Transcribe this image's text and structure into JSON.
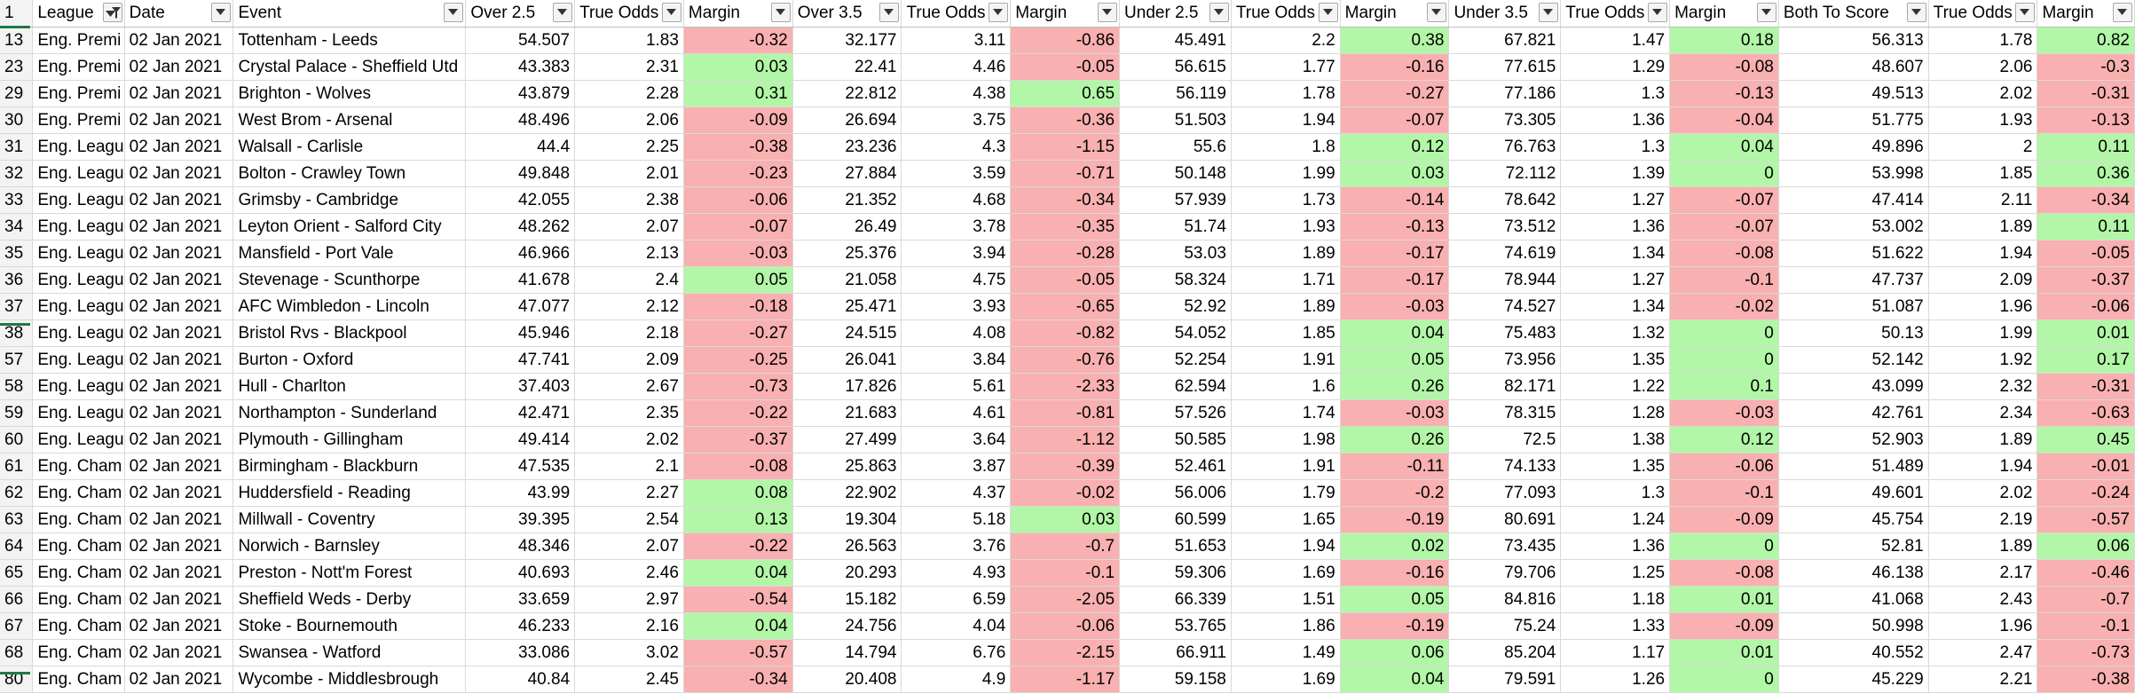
{
  "headers": [
    {
      "row": "1",
      "label": "League",
      "filtered": true
    },
    {
      "label": "Date"
    },
    {
      "label": "Event"
    },
    {
      "label": "Over 2.5"
    },
    {
      "label": "True Odds"
    },
    {
      "label": "Margin"
    },
    {
      "label": "Over 3.5"
    },
    {
      "label": "True Odds"
    },
    {
      "label": "Margin"
    },
    {
      "label": "Under 2.5"
    },
    {
      "label": "True Odds"
    },
    {
      "label": "Margin"
    },
    {
      "label": "Under 3.5"
    },
    {
      "label": "True Odds"
    },
    {
      "label": "Margin"
    },
    {
      "label": "Both To Score"
    },
    {
      "label": "True Odds"
    },
    {
      "label": "Margin"
    }
  ],
  "rows": [
    [
      "13",
      "Eng. Premi",
      "02 Jan 2021",
      "Tottenham - Leeds",
      "54.507",
      "1.83",
      "-0.32",
      "32.177",
      "3.11",
      "-0.86",
      "45.491",
      "2.2",
      "0.38",
      "67.821",
      "1.47",
      "0.18",
      "56.313",
      "1.78",
      "0.82"
    ],
    [
      "23",
      "Eng. Premi",
      "02 Jan 2021",
      "Crystal Palace - Sheffield Utd",
      "43.383",
      "2.31",
      "0.03",
      "22.41",
      "4.46",
      "-0.05",
      "56.615",
      "1.77",
      "-0.16",
      "77.615",
      "1.29",
      "-0.08",
      "48.607",
      "2.06",
      "-0.3"
    ],
    [
      "29",
      "Eng. Premi",
      "02 Jan 2021",
      "Brighton - Wolves",
      "43.879",
      "2.28",
      "0.31",
      "22.812",
      "4.38",
      "0.65",
      "56.119",
      "1.78",
      "-0.27",
      "77.186",
      "1.3",
      "-0.13",
      "49.513",
      "2.02",
      "-0.31"
    ],
    [
      "30",
      "Eng. Premi",
      "02 Jan 2021",
      "West Brom - Arsenal",
      "48.496",
      "2.06",
      "-0.09",
      "26.694",
      "3.75",
      "-0.36",
      "51.503",
      "1.94",
      "-0.07",
      "73.305",
      "1.36",
      "-0.04",
      "51.775",
      "1.93",
      "-0.13"
    ],
    [
      "31",
      "Eng. Leagu",
      "02 Jan 2021",
      "Walsall - Carlisle",
      "44.4",
      "2.25",
      "-0.38",
      "23.236",
      "4.3",
      "-1.15",
      "55.6",
      "1.8",
      "0.12",
      "76.763",
      "1.3",
      "0.04",
      "49.896",
      "2",
      "0.11"
    ],
    [
      "32",
      "Eng. Leagu",
      "02 Jan 2021",
      "Bolton - Crawley Town",
      "49.848",
      "2.01",
      "-0.23",
      "27.884",
      "3.59",
      "-0.71",
      "50.148",
      "1.99",
      "0.03",
      "72.112",
      "1.39",
      "0",
      "53.998",
      "1.85",
      "0.36"
    ],
    [
      "33",
      "Eng. Leagu",
      "02 Jan 2021",
      "Grimsby - Cambridge",
      "42.055",
      "2.38",
      "-0.06",
      "21.352",
      "4.68",
      "-0.34",
      "57.939",
      "1.73",
      "-0.14",
      "78.642",
      "1.27",
      "-0.07",
      "47.414",
      "2.11",
      "-0.34"
    ],
    [
      "34",
      "Eng. Leagu",
      "02 Jan 2021",
      "Leyton Orient - Salford City",
      "48.262",
      "2.07",
      "-0.07",
      "26.49",
      "3.78",
      "-0.35",
      "51.74",
      "1.93",
      "-0.13",
      "73.512",
      "1.36",
      "-0.07",
      "53.002",
      "1.89",
      "0.11"
    ],
    [
      "35",
      "Eng. Leagu",
      "02 Jan 2021",
      "Mansfield - Port Vale",
      "46.966",
      "2.13",
      "-0.03",
      "25.376",
      "3.94",
      "-0.28",
      "53.03",
      "1.89",
      "-0.17",
      "74.619",
      "1.34",
      "-0.08",
      "51.622",
      "1.94",
      "-0.05"
    ],
    [
      "36",
      "Eng. Leagu",
      "02 Jan 2021",
      "Stevenage - Scunthorpe",
      "41.678",
      "2.4",
      "0.05",
      "21.058",
      "4.75",
      "-0.05",
      "58.324",
      "1.71",
      "-0.17",
      "78.944",
      "1.27",
      "-0.1",
      "47.737",
      "2.09",
      "-0.37"
    ],
    [
      "37",
      "Eng. Leagu",
      "02 Jan 2021",
      "AFC Wimbledon - Lincoln",
      "47.077",
      "2.12",
      "-0.18",
      "25.471",
      "3.93",
      "-0.65",
      "52.92",
      "1.89",
      "-0.03",
      "74.527",
      "1.34",
      "-0.02",
      "51.087",
      "1.96",
      "-0.06"
    ],
    [
      "38",
      "Eng. Leagu",
      "02 Jan 2021",
      "Bristol Rvs - Blackpool",
      "45.946",
      "2.18",
      "-0.27",
      "24.515",
      "4.08",
      "-0.82",
      "54.052",
      "1.85",
      "0.04",
      "75.483",
      "1.32",
      "0",
      "50.13",
      "1.99",
      "0.01"
    ],
    [
      "57",
      "Eng. Leagu",
      "02 Jan 2021",
      "Burton - Oxford",
      "47.741",
      "2.09",
      "-0.25",
      "26.041",
      "3.84",
      "-0.76",
      "52.254",
      "1.91",
      "0.05",
      "73.956",
      "1.35",
      "0",
      "52.142",
      "1.92",
      "0.17"
    ],
    [
      "58",
      "Eng. Leagu",
      "02 Jan 2021",
      "Hull - Charlton",
      "37.403",
      "2.67",
      "-0.73",
      "17.826",
      "5.61",
      "-2.33",
      "62.594",
      "1.6",
      "0.26",
      "82.171",
      "1.22",
      "0.1",
      "43.099",
      "2.32",
      "-0.31"
    ],
    [
      "59",
      "Eng. Leagu",
      "02 Jan 2021",
      "Northampton - Sunderland",
      "42.471",
      "2.35",
      "-0.22",
      "21.683",
      "4.61",
      "-0.81",
      "57.526",
      "1.74",
      "-0.03",
      "78.315",
      "1.28",
      "-0.03",
      "42.761",
      "2.34",
      "-0.63"
    ],
    [
      "60",
      "Eng. Leagu",
      "02 Jan 2021",
      "Plymouth - Gillingham",
      "49.414",
      "2.02",
      "-0.37",
      "27.499",
      "3.64",
      "-1.12",
      "50.585",
      "1.98",
      "0.26",
      "72.5",
      "1.38",
      "0.12",
      "52.903",
      "1.89",
      "0.45"
    ],
    [
      "61",
      "Eng. Cham",
      "02 Jan 2021",
      "Birmingham - Blackburn",
      "47.535",
      "2.1",
      "-0.08",
      "25.863",
      "3.87",
      "-0.39",
      "52.461",
      "1.91",
      "-0.11",
      "74.133",
      "1.35",
      "-0.06",
      "51.489",
      "1.94",
      "-0.01"
    ],
    [
      "62",
      "Eng. Cham",
      "02 Jan 2021",
      "Huddersfield - Reading",
      "43.99",
      "2.27",
      "0.08",
      "22.902",
      "4.37",
      "-0.02",
      "56.006",
      "1.79",
      "-0.2",
      "77.093",
      "1.3",
      "-0.1",
      "49.601",
      "2.02",
      "-0.24"
    ],
    [
      "63",
      "Eng. Cham",
      "02 Jan 2021",
      "Millwall - Coventry",
      "39.395",
      "2.54",
      "0.13",
      "19.304",
      "5.18",
      "0.03",
      "60.599",
      "1.65",
      "-0.19",
      "80.691",
      "1.24",
      "-0.09",
      "45.754",
      "2.19",
      "-0.57"
    ],
    [
      "64",
      "Eng. Cham",
      "02 Jan 2021",
      "Norwich - Barnsley",
      "48.346",
      "2.07",
      "-0.22",
      "26.563",
      "3.76",
      "-0.7",
      "51.653",
      "1.94",
      "0.02",
      "73.435",
      "1.36",
      "0",
      "52.81",
      "1.89",
      "0.06"
    ],
    [
      "65",
      "Eng. Cham",
      "02 Jan 2021",
      "Preston - Nott'm Forest",
      "40.693",
      "2.46",
      "0.04",
      "20.293",
      "4.93",
      "-0.1",
      "59.306",
      "1.69",
      "-0.16",
      "79.706",
      "1.25",
      "-0.08",
      "46.138",
      "2.17",
      "-0.46"
    ],
    [
      "66",
      "Eng. Cham",
      "02 Jan 2021",
      "Sheffield Weds - Derby",
      "33.659",
      "2.97",
      "-0.54",
      "15.182",
      "6.59",
      "-2.05",
      "66.339",
      "1.51",
      "0.05",
      "84.816",
      "1.18",
      "0.01",
      "41.068",
      "2.43",
      "-0.7"
    ],
    [
      "67",
      "Eng. Cham",
      "02 Jan 2021",
      "Stoke - Bournemouth",
      "46.233",
      "2.16",
      "0.04",
      "24.756",
      "4.04",
      "-0.06",
      "53.765",
      "1.86",
      "-0.19",
      "75.24",
      "1.33",
      "-0.09",
      "50.998",
      "1.96",
      "-0.1"
    ],
    [
      "68",
      "Eng. Cham",
      "02 Jan 2021",
      "Swansea - Watford",
      "33.086",
      "3.02",
      "-0.57",
      "14.794",
      "6.76",
      "-2.15",
      "66.911",
      "1.49",
      "0.06",
      "85.204",
      "1.17",
      "0.01",
      "40.552",
      "2.47",
      "-0.73"
    ],
    [
      "80",
      "Eng. Cham",
      "02 Jan 2021",
      "Wycombe - Middlesbrough",
      "40.84",
      "2.45",
      "-0.34",
      "20.408",
      "4.9",
      "-1.17",
      "59.158",
      "1.69",
      "0.04",
      "79.591",
      "1.26",
      "0",
      "45.229",
      "2.21",
      "-0.38"
    ]
  ],
  "colors": {
    "positive_margin": "#b2f7a7",
    "negative_margin": "#f9b0b0",
    "row_number": "#1a5fd1",
    "hidden_rows_marker": "#1e7a45"
  }
}
